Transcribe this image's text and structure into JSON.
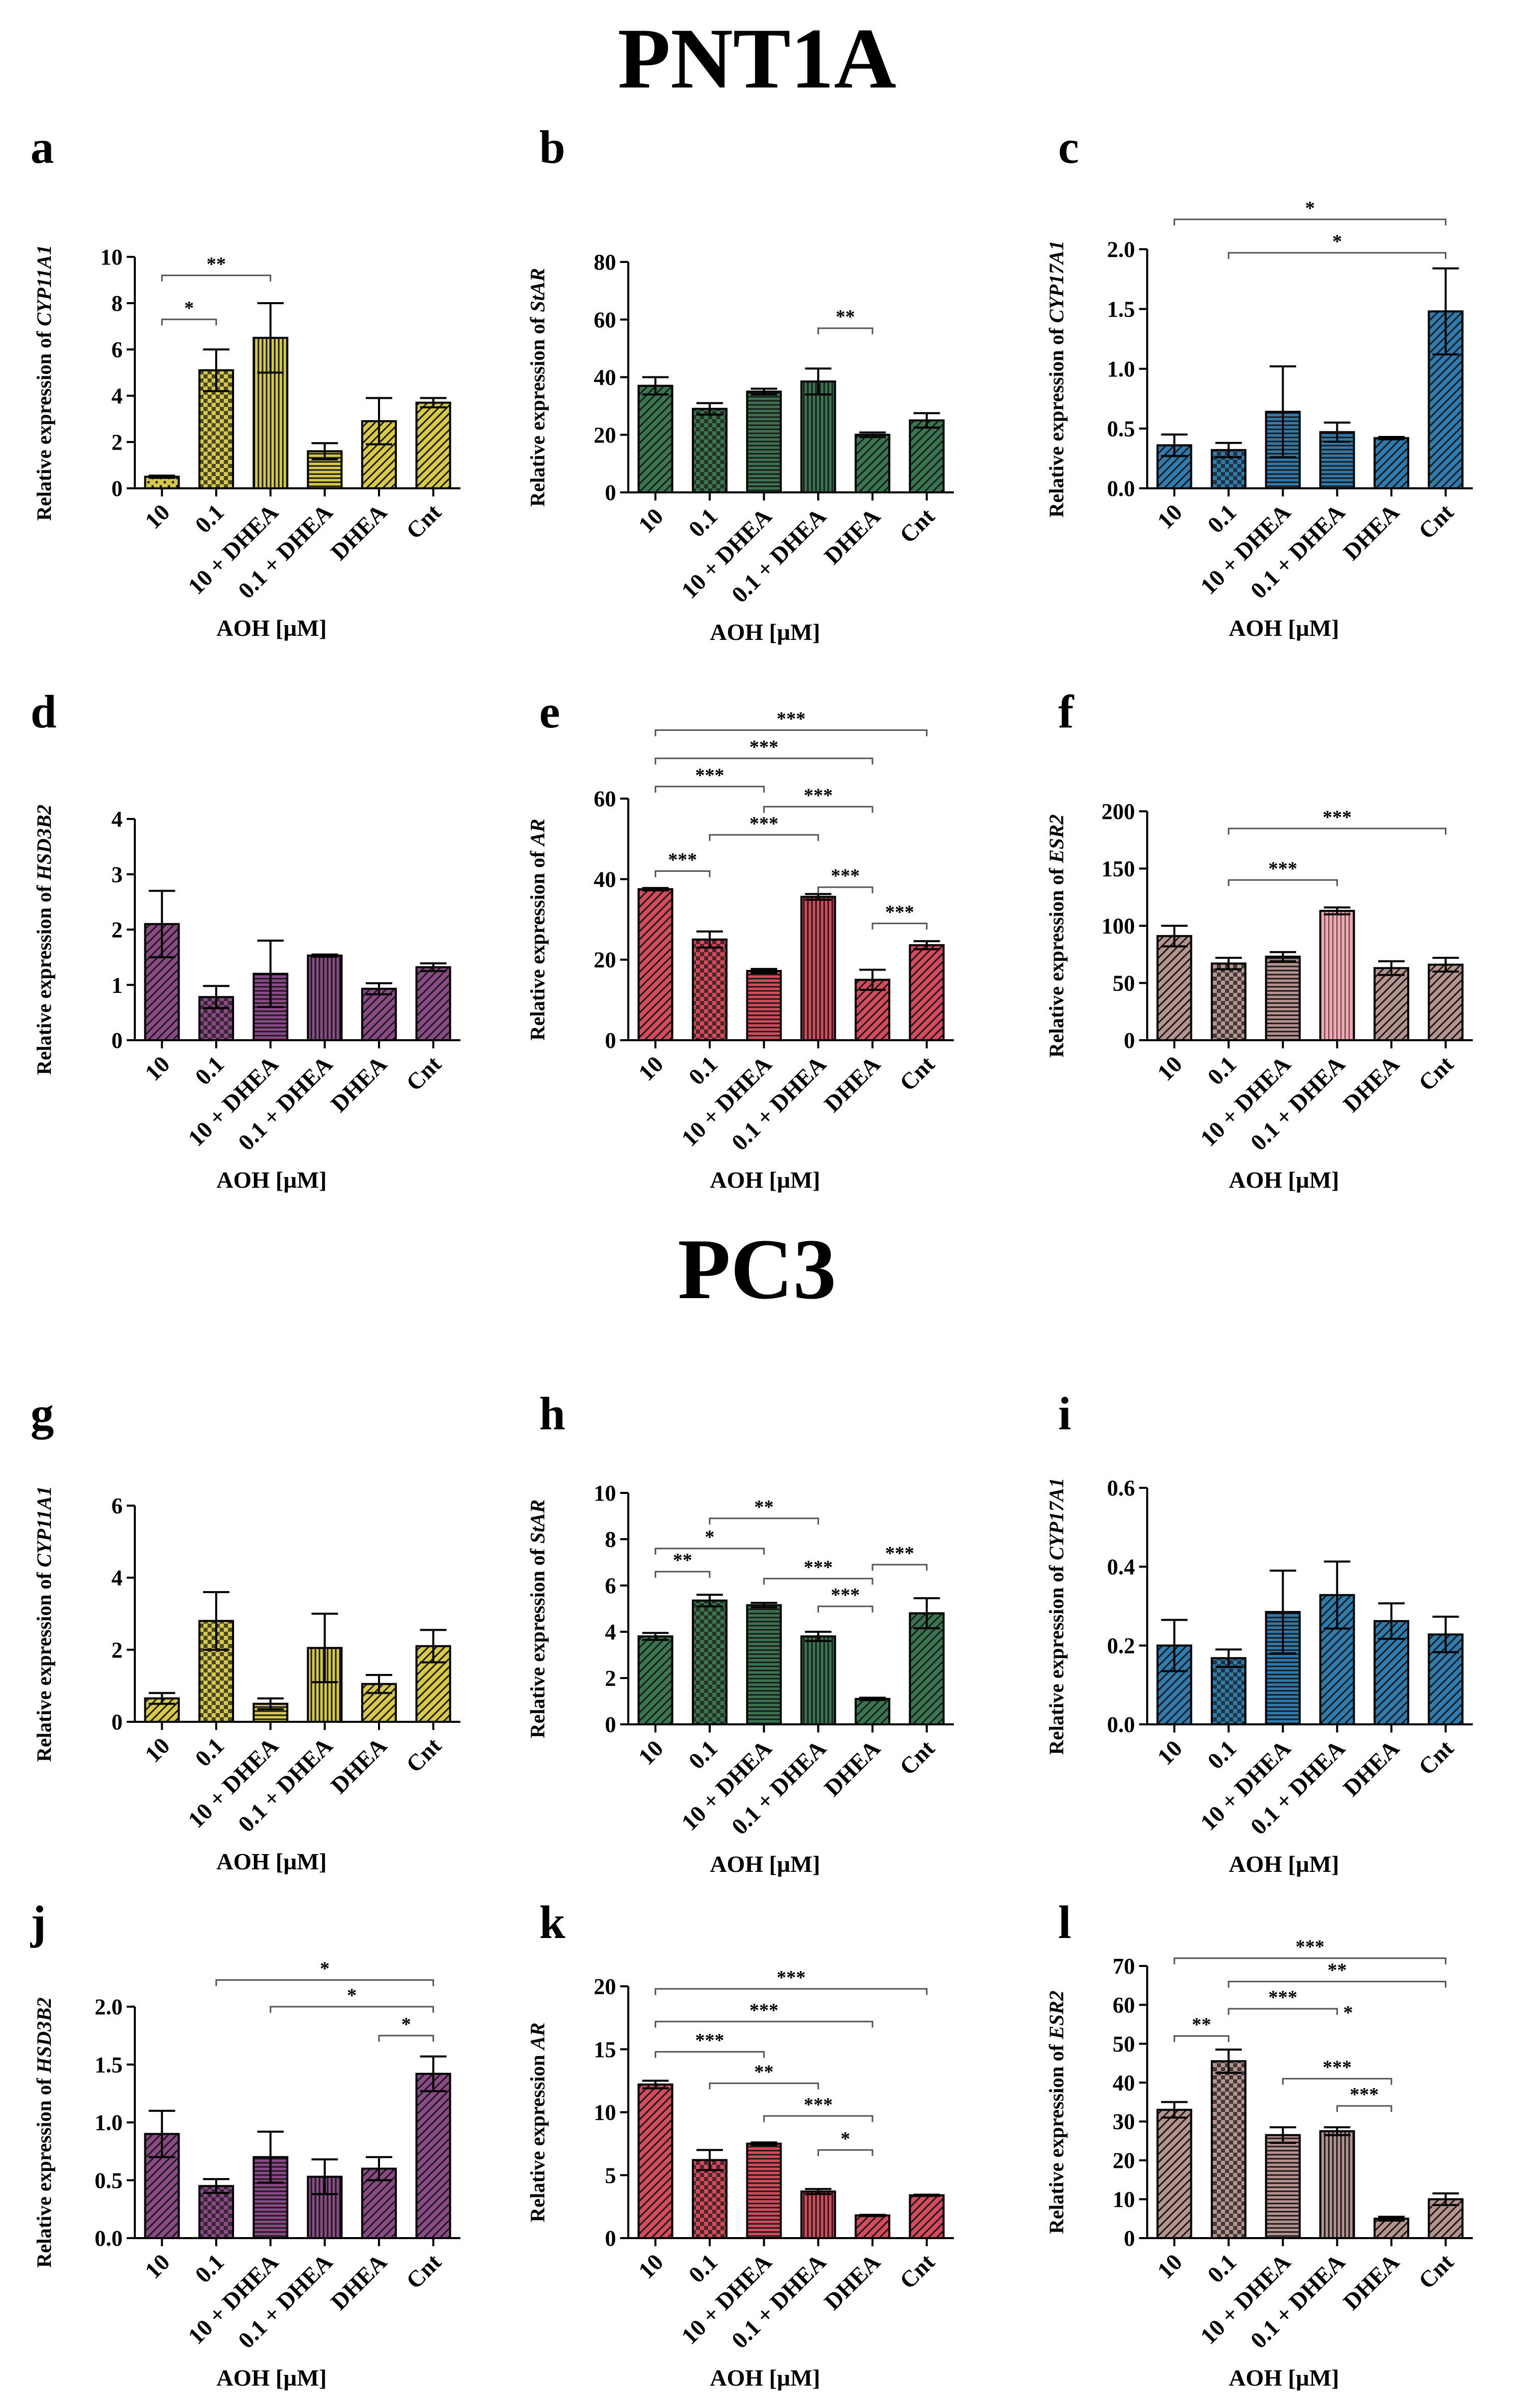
{
  "titles": {
    "pnt1a": "PNT1A",
    "pc3": "PC3"
  },
  "colors": {
    "yellow": "#d6c94a",
    "green": "#3a7550",
    "blue": "#2f7bad",
    "purple": "#8a4a86",
    "red": "#d64a5c",
    "pink": "#ddaab0",
    "brownish": "#b5938f",
    "axis": "#000000"
  },
  "chart_data": [
    {
      "type": "bar",
      "panel": "a",
      "color": "yellow",
      "pattern": [
        "dots",
        "checker",
        "vlines",
        "hlines",
        "diag",
        "diag"
      ],
      "ylabel_prefix": "Relative expression of ",
      "gene": "CYP11A1",
      "xlabel": "AOH [µM]",
      "categories": [
        "10",
        "0.1",
        "10 + DHEA",
        "0.1 + DHEA",
        "DHEA",
        "Cnt"
      ],
      "values": [
        0.5,
        5.1,
        6.5,
        1.6,
        2.9,
        3.7
      ],
      "errors": [
        0.05,
        0.9,
        1.5,
        0.35,
        1.0,
        0.2
      ],
      "ylim": [
        0,
        10
      ],
      "yticks": [
        0,
        2,
        4,
        6,
        8,
        10
      ],
      "tick_labels": [
        "0",
        "2",
        "4",
        "6",
        "8",
        "10"
      ],
      "sig": [
        {
          "from": 0,
          "to": 1,
          "label": "*",
          "y": 7.3
        },
        {
          "from": 0,
          "to": 2,
          "label": "**",
          "y": 9.2
        }
      ]
    },
    {
      "type": "bar",
      "panel": "b",
      "color": "green",
      "pattern": [
        "diag",
        "checker",
        "hlines",
        "vlines",
        "diag",
        "diag"
      ],
      "ylabel_prefix": "Relative expression of ",
      "gene": "StAR",
      "xlabel": "AOH [µM]",
      "categories": [
        "10",
        "0.1",
        "10 + DHEA",
        "0.1 + DHEA",
        "DHEA",
        "Cnt"
      ],
      "values": [
        37,
        29,
        35,
        38.5,
        20,
        25
      ],
      "errors": [
        3.0,
        2.0,
        1.0,
        4.5,
        0.8,
        2.5
      ],
      "ylim": [
        0,
        80
      ],
      "yticks": [
        0,
        20,
        40,
        60,
        80
      ],
      "tick_labels": [
        "0",
        "20",
        "40",
        "60",
        "80"
      ],
      "sig": [
        {
          "from": 4,
          "to": 3,
          "label": "**",
          "y": 57
        }
      ]
    },
    {
      "type": "bar",
      "panel": "c",
      "color": "blue",
      "pattern": [
        "diag",
        "checker",
        "hlines",
        "hlines",
        "diag",
        "diag"
      ],
      "ylabel_prefix": "Relative expression of ",
      "gene": "CYP17A1",
      "xlabel": "AOH [µM]",
      "categories": [
        "10",
        "0.1",
        "10 + DHEA",
        "0.1 + DHEA",
        "DHEA",
        "Cnt"
      ],
      "values": [
        0.36,
        0.32,
        0.64,
        0.47,
        0.42,
        1.48
      ],
      "errors": [
        0.09,
        0.06,
        0.38,
        0.08,
        0.01,
        0.36
      ],
      "ylim": [
        0,
        2.0
      ],
      "yticks": [
        0,
        0.5,
        1.0,
        1.5,
        2.0
      ],
      "tick_labels": [
        "0.0",
        "0.5",
        "1.0",
        "1.5",
        "2.0"
      ],
      "sig": [
        {
          "from": 0,
          "to": 5,
          "label": "*",
          "y": 2.25
        },
        {
          "from": 1,
          "to": 5,
          "label": "*",
          "y": 1.97
        }
      ]
    },
    {
      "type": "bar",
      "panel": "d",
      "color": "purple",
      "pattern": [
        "diag",
        "checker",
        "hlines",
        "vlines",
        "diag",
        "diag"
      ],
      "ylabel_prefix": "Relative expression of ",
      "gene": "HSD3B2",
      "xlabel": "AOH [µM]",
      "categories": [
        "10",
        "0.1",
        "10 + DHEA",
        "0.1 + DHEA",
        "DHEA",
        "Cnt"
      ],
      "values": [
        2.1,
        0.78,
        1.2,
        1.53,
        0.93,
        1.32
      ],
      "errors": [
        0.6,
        0.2,
        0.6,
        0.02,
        0.1,
        0.07
      ],
      "ylim": [
        0,
        4
      ],
      "yticks": [
        0,
        1,
        2,
        3,
        4
      ],
      "tick_labels": [
        "0",
        "1",
        "2",
        "3",
        "4"
      ],
      "sig": []
    },
    {
      "type": "bar",
      "panel": "e",
      "color": "red",
      "pattern": [
        "diag",
        "checker",
        "hlines",
        "vlines",
        "diag",
        "diag"
      ],
      "ylabel_prefix": "Relative expression of ",
      "gene": "AR",
      "xlabel": "AOH [µM]",
      "categories": [
        "10",
        "0.1",
        "10 + DHEA",
        "0.1 + DHEA",
        "DHEA",
        "Cnt"
      ],
      "values": [
        37.5,
        25,
        17.2,
        35.6,
        15,
        23.6
      ],
      "errors": [
        0.3,
        2.0,
        0.5,
        0.7,
        2.5,
        1.0
      ],
      "ylim": [
        0,
        60
      ],
      "yticks": [
        0,
        20,
        40,
        60
      ],
      "tick_labels": [
        "0",
        "20",
        "40",
        "60"
      ],
      "sig": [
        {
          "from": 0,
          "to": 1,
          "label": "***",
          "y": 42
        },
        {
          "from": 4,
          "to": 5,
          "label": "***",
          "y": 29
        },
        {
          "from": 3,
          "to": 4,
          "label": "***",
          "y": 38
        },
        {
          "from": 1,
          "to": 3,
          "label": "***",
          "y": 51
        },
        {
          "from": 2,
          "to": 4,
          "label": "***",
          "y": 58
        },
        {
          "from": 0,
          "to": 2,
          "label": "***",
          "y": 63
        },
        {
          "from": 0,
          "to": 4,
          "label": "***",
          "y": 70
        },
        {
          "from": 0,
          "to": 5,
          "label": "***",
          "y": 77
        }
      ]
    },
    {
      "type": "bar",
      "panel": "f",
      "color": "brownish",
      "pattern": [
        "diag",
        "checker",
        "hlines",
        "pinkv",
        "diag",
        "diag"
      ],
      "ylabel_prefix": "Relative expression of ",
      "gene": "ESR2",
      "xlabel": "AOH [µM]",
      "categories": [
        "10",
        "0.1",
        "10 + DHEA",
        "0.1 + DHEA",
        "DHEA",
        "Cnt"
      ],
      "values": [
        91,
        67,
        73,
        113,
        63,
        66
      ],
      "errors": [
        9,
        5,
        4,
        3,
        6,
        6
      ],
      "ylim": [
        0,
        200
      ],
      "yticks": [
        0,
        50,
        100,
        150,
        200
      ],
      "tick_labels": [
        "0",
        "50",
        "100",
        "150",
        "200"
      ],
      "sig": [
        {
          "from": 1,
          "to": 3,
          "label": "***",
          "y": 140
        },
        {
          "from": 1,
          "to": 5,
          "label": "***",
          "y": 185
        }
      ]
    },
    {
      "type": "bar",
      "panel": "g",
      "color": "yellow",
      "pattern": [
        "diag",
        "checker",
        "hlines",
        "vlines",
        "diag",
        "diag"
      ],
      "ylabel_prefix": "Relative expression of ",
      "gene": "CYP11A1",
      "xlabel": "AOH [µM]",
      "categories": [
        "10",
        "0.1",
        "10 + DHEA",
        "0.1 + DHEA",
        "DHEA",
        "Cnt"
      ],
      "values": [
        0.65,
        2.8,
        0.5,
        2.05,
        1.05,
        2.1
      ],
      "errors": [
        0.15,
        0.8,
        0.15,
        0.95,
        0.25,
        0.45
      ],
      "ylim": [
        0,
        6
      ],
      "yticks": [
        0,
        2,
        4,
        6
      ],
      "tick_labels": [
        "0",
        "2",
        "4",
        "6"
      ],
      "sig": []
    },
    {
      "type": "bar",
      "panel": "h",
      "color": "green",
      "pattern": [
        "diag",
        "checker",
        "hlines",
        "vlines",
        "diag",
        "diag"
      ],
      "ylabel_prefix": "Relative expression of ",
      "gene": "StAR",
      "xlabel": "AOH [µM]",
      "categories": [
        "10",
        "0.1",
        "10 + DHEA",
        "0.1 + DHEA",
        "DHEA",
        "Cnt"
      ],
      "values": [
        3.8,
        5.35,
        5.15,
        3.8,
        1.1,
        4.8
      ],
      "errors": [
        0.15,
        0.25,
        0.1,
        0.2,
        0.05,
        0.65
      ],
      "ylim": [
        0,
        10
      ],
      "yticks": [
        0,
        2,
        4,
        6,
        8,
        10
      ],
      "tick_labels": [
        "0",
        "2",
        "4",
        "6",
        "8",
        "10"
      ],
      "sig": [
        {
          "from": 0,
          "to": 1,
          "label": "**",
          "y": 6.6
        },
        {
          "from": 0,
          "to": 2,
          "label": "*",
          "y": 7.6
        },
        {
          "from": 1,
          "to": 3,
          "label": "**",
          "y": 8.9
        },
        {
          "from": 2,
          "to": 4,
          "label": "***",
          "y": 6.3
        },
        {
          "from": 3,
          "to": 4,
          "label": "***",
          "y": 5.1
        },
        {
          "from": 4,
          "to": 5,
          "label": "***",
          "y": 6.9
        }
      ]
    },
    {
      "type": "bar",
      "panel": "i",
      "color": "blue",
      "pattern": [
        "diag",
        "checker",
        "hlines",
        "diag",
        "diag",
        "diag"
      ],
      "ylabel_prefix": "Relative expression of ",
      "gene": "CYP17A1",
      "xlabel": "AOH [µM]",
      "categories": [
        "10",
        "0.1",
        "10 + DHEA",
        "0.1 + DHEA",
        "DHEA",
        "Cnt"
      ],
      "values": [
        0.2,
        0.168,
        0.285,
        0.328,
        0.262,
        0.228
      ],
      "errors": [
        0.065,
        0.022,
        0.105,
        0.085,
        0.045,
        0.045
      ],
      "ylim": [
        0,
        0.6
      ],
      "yticks": [
        0,
        0.2,
        0.4,
        0.6
      ],
      "tick_labels": [
        "0.0",
        "0.2",
        "0.4",
        "0.6"
      ],
      "sig": []
    },
    {
      "type": "bar",
      "panel": "j",
      "color": "purple",
      "pattern": [
        "diag",
        "checker",
        "hlines",
        "vlines",
        "diag",
        "diag"
      ],
      "ylabel_prefix": "Relative expression of ",
      "gene": "HSD3B2",
      "xlabel": "AOH [µM]",
      "categories": [
        "10",
        "0.1",
        "10 + DHEA",
        "0.1 + DHEA",
        "DHEA",
        "Cnt"
      ],
      "values": [
        0.9,
        0.45,
        0.7,
        0.53,
        0.6,
        1.42
      ],
      "errors": [
        0.2,
        0.06,
        0.22,
        0.15,
        0.1,
        0.15
      ],
      "ylim": [
        0,
        2.0
      ],
      "yticks": [
        0,
        0.5,
        1.0,
        1.5,
        2.0
      ],
      "tick_labels": [
        "0.0",
        "0.5",
        "1.0",
        "1.5",
        "2.0"
      ],
      "sig": [
        {
          "from": 4,
          "to": 5,
          "label": "*",
          "y": 1.75
        },
        {
          "from": 2,
          "to": 5,
          "label": "*",
          "y": 2.0
        },
        {
          "from": 1,
          "to": 5,
          "label": "*",
          "y": 2.23
        }
      ]
    },
    {
      "type": "bar",
      "panel": "k",
      "color": "red",
      "pattern": [
        "diag",
        "checker",
        "hlines",
        "vlines",
        "diag",
        "diag"
      ],
      "ylabel_prefix": "Relative expression ",
      "gene": "AR",
      "xlabel": "AOH [µM]",
      "categories": [
        "10",
        "0.1",
        "10 + DHEA",
        "0.1 + DHEA",
        "DHEA",
        "Cnt"
      ],
      "values": [
        12.2,
        6.2,
        7.5,
        3.7,
        1.8,
        3.4
      ],
      "errors": [
        0.3,
        0.8,
        0.1,
        0.2,
        0.05,
        0.05
      ],
      "ylim": [
        0,
        20
      ],
      "yticks": [
        0,
        5,
        10,
        15,
        20
      ],
      "tick_labels": [
        "0",
        "5",
        "10",
        "15",
        "20"
      ],
      "sig": [
        {
          "from": 3,
          "to": 4,
          "label": "*",
          "y": 7.0
        },
        {
          "from": 2,
          "to": 4,
          "label": "***",
          "y": 9.7
        },
        {
          "from": 1,
          "to": 3,
          "label": "**",
          "y": 12.3
        },
        {
          "from": 0,
          "to": 2,
          "label": "***",
          "y": 14.8
        },
        {
          "from": 0,
          "to": 4,
          "label": "***",
          "y": 17.2
        },
        {
          "from": 0,
          "to": 5,
          "label": "***",
          "y": 19.8
        }
      ]
    },
    {
      "type": "bar",
      "panel": "l",
      "color": "brownish",
      "pattern": [
        "diag",
        "checker",
        "hlines",
        "vlines",
        "diag",
        "diag"
      ],
      "ylabel_prefix": "Relative expression of ",
      "gene": "ESR2",
      "xlabel": "AOH [µM]",
      "categories": [
        "10",
        "0.1",
        "10 + DHEA",
        "0.1 + DHEA",
        "DHEA",
        "Cnt"
      ],
      "values": [
        33,
        45.5,
        26.5,
        27.5,
        5,
        10
      ],
      "errors": [
        2,
        3,
        2,
        1,
        0.5,
        1.5
      ],
      "ylim": [
        0,
        70
      ],
      "yticks": [
        0,
        10,
        20,
        30,
        40,
        50,
        60,
        70
      ],
      "tick_labels": [
        "0",
        "10",
        "20",
        "30",
        "40",
        "50",
        "60",
        "70"
      ],
      "sig": [
        {
          "from": 0,
          "to": 1,
          "label": "**",
          "y": 52
        },
        {
          "from": 3,
          "to": 4,
          "label": "***",
          "y": 34
        },
        {
          "from": 2,
          "to": 4,
          "label": "***",
          "y": 41
        },
        {
          "from": 1,
          "to": 3,
          "label": "***",
          "y": 59,
          "extra": "*"
        },
        {
          "from": 1,
          "to": 5,
          "label": "**",
          "y": 66
        },
        {
          "from": 0,
          "to": 5,
          "label": "***",
          "y": 72
        }
      ]
    }
  ]
}
